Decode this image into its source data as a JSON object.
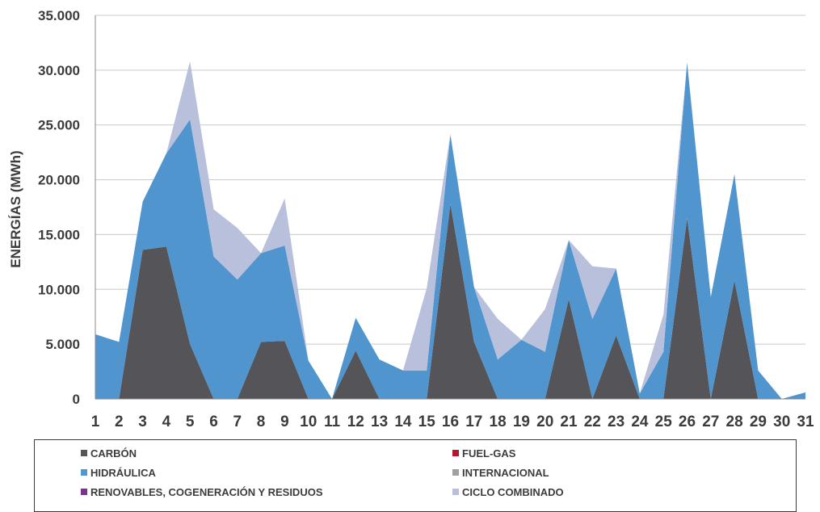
{
  "chart_data": {
    "type": "area",
    "title": "",
    "xlabel": "",
    "ylabel": "ENERGÍAS (MWh)",
    "x": [
      1,
      2,
      3,
      4,
      5,
      6,
      7,
      8,
      9,
      10,
      11,
      12,
      13,
      14,
      15,
      16,
      17,
      18,
      19,
      20,
      21,
      22,
      23,
      24,
      25,
      26,
      27,
      28,
      29,
      30,
      31
    ],
    "x_labels": [
      "1",
      "2",
      "3",
      "4",
      "5",
      "6",
      "7",
      "8",
      "9",
      "10",
      "11",
      "12",
      "13",
      "14",
      "15",
      "16",
      "17",
      "18",
      "19",
      "20",
      "21",
      "22",
      "23",
      "24",
      "25",
      "26",
      "27",
      "28",
      "29",
      "30",
      "31"
    ],
    "ylim": [
      0,
      35000
    ],
    "y_ticks": [
      0,
      5000,
      10000,
      15000,
      20000,
      25000,
      30000,
      35000
    ],
    "y_tick_labels": [
      "0",
      "5.000",
      "10.000",
      "15.000",
      "20.000",
      "25.000",
      "30.000",
      "35.000"
    ],
    "stacked": true,
    "grid": "horizontal",
    "legend_position": "bottom",
    "series": [
      {
        "name": "CARBÓN",
        "color": "#555559",
        "values": [
          0,
          0,
          13600,
          13900,
          5000,
          0,
          0,
          5200,
          5300,
          0,
          0,
          4400,
          0,
          0,
          0,
          17800,
          5200,
          0,
          0,
          0,
          9100,
          0,
          5800,
          0,
          0,
          16500,
          0,
          10800,
          0,
          0,
          0
        ]
      },
      {
        "name": "FUEL-GAS",
        "color": "#b5152e",
        "values": [
          0,
          0,
          0,
          0,
          0,
          0,
          0,
          0,
          0,
          0,
          0,
          0,
          0,
          0,
          0,
          0,
          0,
          0,
          0,
          0,
          0,
          0,
          0,
          0,
          0,
          0,
          0,
          0,
          0,
          0,
          0
        ]
      },
      {
        "name": "HIDRÁULICA",
        "color": "#5195cf",
        "values": [
          5900,
          5200,
          4400,
          8500,
          20500,
          13000,
          10900,
          8100,
          8700,
          3500,
          0,
          3000,
          3600,
          2600,
          2600,
          6300,
          5000,
          3600,
          5400,
          4300,
          5400,
          7300,
          6100,
          500,
          4300,
          14200,
          9300,
          9700,
          2600,
          0,
          600
        ]
      },
      {
        "name": "INTERNACIONAL",
        "color": "#9ea0a2",
        "values": [
          0,
          0,
          0,
          0,
          0,
          0,
          0,
          0,
          0,
          0,
          0,
          0,
          0,
          0,
          0,
          0,
          0,
          0,
          0,
          0,
          0,
          0,
          0,
          0,
          0,
          0,
          0,
          0,
          0,
          0,
          0
        ]
      },
      {
        "name": "RENOVABLES, COGENERACIÓN Y RESIDUOS",
        "color": "#7b3294",
        "values": [
          0,
          0,
          0,
          0,
          0,
          0,
          0,
          0,
          0,
          0,
          0,
          0,
          0,
          0,
          0,
          0,
          0,
          0,
          0,
          0,
          0,
          0,
          0,
          0,
          0,
          0,
          0,
          0,
          0,
          0,
          0
        ]
      },
      {
        "name": "CICLO COMBINADO",
        "color": "#b8c0dc",
        "values": [
          0,
          0,
          0,
          0,
          5300,
          4300,
          4700,
          0,
          4300,
          0,
          0,
          0,
          0,
          0,
          7500,
          100,
          0,
          3700,
          0,
          3900,
          0,
          4800,
          0,
          0,
          3400,
          0,
          0,
          0,
          0,
          0,
          0
        ]
      }
    ]
  },
  "legend": {
    "items": [
      {
        "label": "CARBÓN",
        "color": "#555559"
      },
      {
        "label": "FUEL-GAS",
        "color": "#b5152e"
      },
      {
        "label": "HIDRÁULICA",
        "color": "#5195cf"
      },
      {
        "label": "INTERNACIONAL",
        "color": "#9ea0a2"
      },
      {
        "label": "RENOVABLES, COGENERACIÓN Y RESIDUOS",
        "color": "#7b3294"
      },
      {
        "label": "CICLO COMBINADO",
        "color": "#b8c0dc"
      }
    ]
  }
}
